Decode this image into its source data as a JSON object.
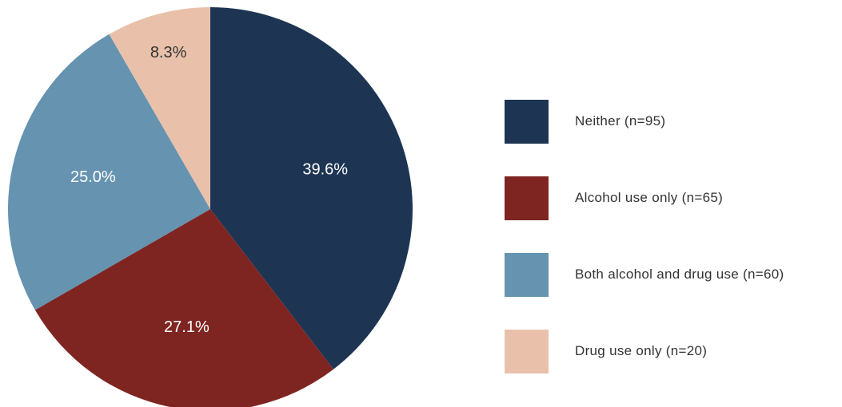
{
  "chart_data": {
    "type": "pie",
    "title": "",
    "slices": [
      {
        "name": "Neither (n=95)",
        "value": 95,
        "percent_label": "39.6%",
        "color": "#1d3553",
        "label_color": "#ffffff"
      },
      {
        "name": "Alcohol use only (n=65)",
        "value": 65,
        "percent_label": "27.1%",
        "color": "#7f2521",
        "label_color": "#ffffff"
      },
      {
        "name": "Both alcohol and drug use (n=60)",
        "value": 60,
        "percent_label": "25.0%",
        "color": "#6593b0",
        "label_color": "#ffffff"
      },
      {
        "name": "Drug use only (n=20)",
        "value": 20,
        "percent_label": "8.3%",
        "color": "#e9c1ab",
        "label_color": "#333333"
      }
    ],
    "start_angle": "12 o'clock",
    "direction": "clockwise",
    "legend": "right"
  }
}
